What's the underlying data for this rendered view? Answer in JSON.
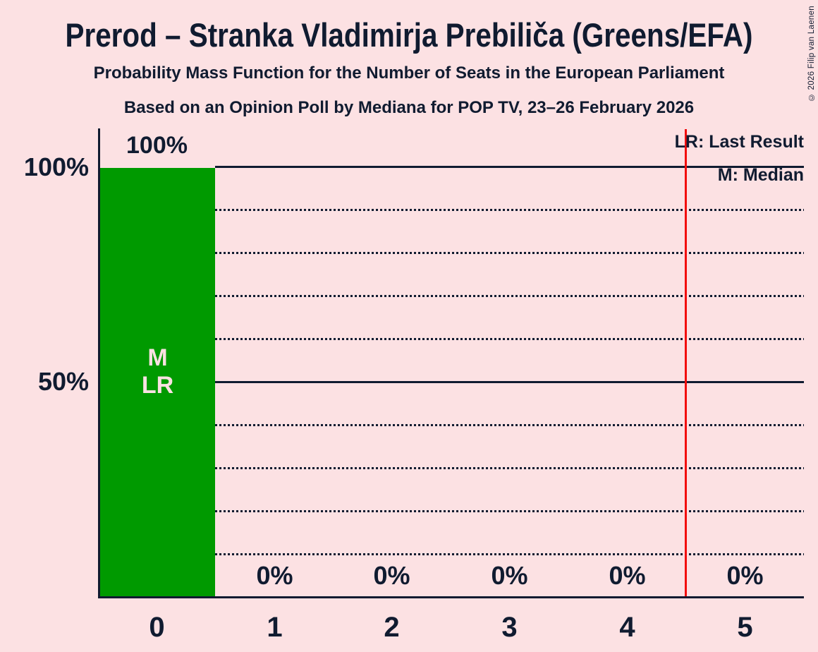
{
  "title": "Prerod – Stranka Vladimirja Prebiliča (Greens/EFA)",
  "subtitle1": "Probability Mass Function for the Number of Seats in the European Parliament",
  "subtitle2": "Based on an Opinion Poll by Mediana for POP TV, 23–26 February 2026",
  "copyright": "© 2026 Filip van Laenen",
  "legend": {
    "last_result": "LR: Last Result",
    "median": "M: Median"
  },
  "y_axis": {
    "label_100": "100%",
    "label_50": "50%"
  },
  "bar": {
    "value_label": "100%",
    "marker_text": "M\nLR"
  },
  "zero_labels": [
    "0%",
    "0%",
    "0%",
    "0%",
    "0%"
  ],
  "x_labels": [
    "0",
    "1",
    "2",
    "3",
    "4",
    "5"
  ],
  "colors": {
    "background": "#FCE1E3",
    "ink": "#101B30",
    "bar_green": "#009A00",
    "red_line": "#F20D0D",
    "bar_marker_text": "#FCE1E3"
  },
  "chart_data": {
    "type": "bar",
    "title": "Prerod – Stranka Vladimirja Prebiliča (Greens/EFA)",
    "subtitle": "Probability Mass Function for the Number of Seats in the European Parliament",
    "source_note": "Based on an Opinion Poll by Mediana for POP TV, 23–26 February 2026",
    "categories": [
      "0",
      "1",
      "2",
      "3",
      "4",
      "5"
    ],
    "values": [
      100,
      0,
      0,
      0,
      0,
      0
    ],
    "value_labels": [
      "100%",
      "0%",
      "0%",
      "0%",
      "0%",
      "0%"
    ],
    "unit": "percent probability",
    "xlabel": "",
    "ylabel": "",
    "ylim": [
      0,
      100
    ],
    "y_ticks_labeled": [
      "100%",
      "50%"
    ],
    "gridlines": "dotted every 10%, solid at 50% and 100%",
    "median_seats": 0,
    "last_result_seats": 0,
    "red_vertical_line_x": 4.5,
    "legend_entries": [
      "LR: Last Result",
      "M: Median"
    ],
    "legend_position": "top-right",
    "bar_color": "#009A00"
  }
}
